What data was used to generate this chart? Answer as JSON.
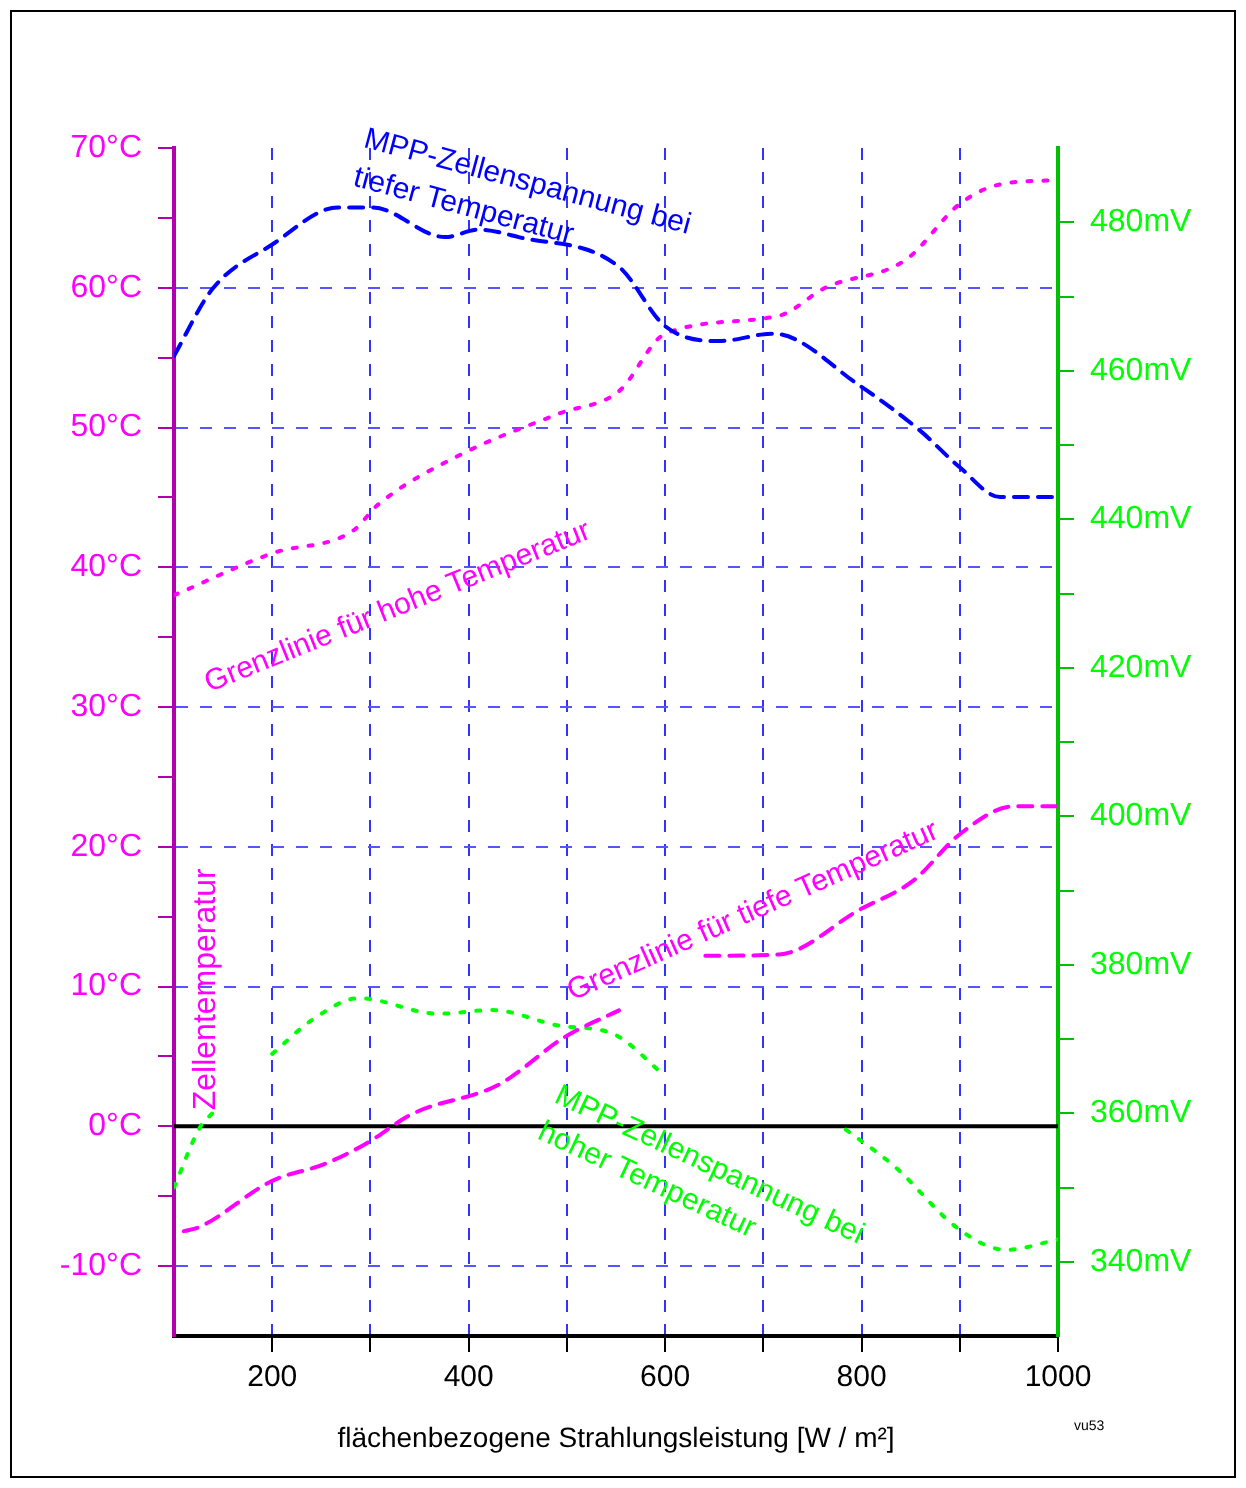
{
  "chart_data": {
    "type": "line",
    "xlabel": "flächenbezogene Strahlungsleistung [W / m²]",
    "ylabel": "Zellentemperatur",
    "xlim": [
      100,
      1000
    ],
    "xticks": [
      200,
      {
        "value": 300,
        "label": null
      },
      400,
      {
        "value": 500,
        "label": null
      },
      600,
      {
        "value": 700,
        "label": null
      },
      800,
      {
        "value": 900,
        "label": null
      },
      1000
    ],
    "ylim": [
      -15,
      70
    ],
    "yticks": [
      {
        "value": -10,
        "label": "-10°C"
      },
      {
        "value": -5,
        "label": null
      },
      {
        "value": 0,
        "label": "0°C"
      },
      {
        "value": 5,
        "label": null
      },
      {
        "value": 10,
        "label": "10°C"
      },
      {
        "value": 15,
        "label": null
      },
      {
        "value": 20,
        "label": "20°C"
      },
      {
        "value": 25,
        "label": null
      },
      {
        "value": 30,
        "label": "30°C"
      },
      {
        "value": 35,
        "label": null
      },
      {
        "value": 40,
        "label": "40°C"
      },
      {
        "value": 45,
        "label": null
      },
      {
        "value": 50,
        "label": "50°C"
      },
      {
        "value": 55,
        "label": null
      },
      {
        "value": 60,
        "label": "60°C"
      },
      {
        "value": 65,
        "label": null
      },
      {
        "value": 70,
        "label": "70°C"
      }
    ],
    "y2lim": [
      330,
      490
    ],
    "y2ticks": [
      {
        "value": 340,
        "label": "340mV"
      },
      {
        "value": 350,
        "label": null
      },
      {
        "value": 360,
        "label": "360mV"
      },
      {
        "value": 370,
        "label": null
      },
      {
        "value": 380,
        "label": "380mV"
      },
      {
        "value": 390,
        "label": null
      },
      {
        "value": 400,
        "label": "400mV"
      },
      {
        "value": 410,
        "label": null
      },
      {
        "value": 420,
        "label": "420mV"
      },
      {
        "value": 430,
        "label": null
      },
      {
        "value": 440,
        "label": "440mV"
      },
      {
        "value": 450,
        "label": null
      },
      {
        "value": 460,
        "label": "460mV"
      },
      {
        "value": 470,
        "label": null
      },
      {
        "value": 480,
        "label": "480mV"
      }
    ],
    "series": [
      {
        "name": "MPP-Zellenspannung bei tiefer Temperatur",
        "color": "#0000ff",
        "axis": "y2",
        "line_style": "dashed",
        "x": [
          100,
          139,
          200,
          267,
          302,
          376,
          410,
          451,
          553,
          600,
          655,
          710,
          798,
          859,
          900,
          941,
          982,
          1000
        ],
        "values": [
          462,
          471,
          477,
          482,
          482,
          478,
          479,
          478,
          474,
          466,
          464,
          465,
          458,
          452,
          447,
          443,
          443,
          443
        ]
      },
      {
        "name": "Grenzlinie für hohe Temperatur",
        "color": "#ff00ff",
        "line_style": "dotted",
        "x": [
          100,
          200,
          282,
          308,
          390,
          492,
          553,
          600,
          716,
          763,
          845,
          900,
          941,
          1000
        ],
        "values": [
          38,
          41,
          42.6,
          44.5,
          48,
          51,
          52.6,
          56.7,
          58,
          60,
          62,
          66,
          67.4,
          67.7
        ]
      },
      {
        "name": "Grenzlinie für tiefe Temperatur",
        "color": "#ff00ff",
        "line_style": "dashed",
        "x": [
          110,
          126,
          200,
          253,
          294,
          343,
          431,
          498,
          553,
          600,
          641,
          716,
          798,
          853,
          900,
          955,
          1000
        ],
        "values": [
          -7.5,
          -7.2,
          -3.9,
          -2.7,
          -1.3,
          0.9,
          3,
          6.4,
          8.3,
          null,
          12.2,
          12.3,
          15.5,
          17.6,
          20.9,
          22.9,
          22.9
        ]
      },
      {
        "name": "MPP-Zellenspannung bei hoher Temperatur",
        "color": "#00ff00",
        "axis": "y2",
        "line_style": "dotted",
        "x": [
          100,
          126,
          139,
          170,
          200,
          241,
          288,
          369,
          424,
          492,
          547,
          600,
          700,
          784,
          833,
          900,
          947,
          1000
        ],
        "values": [
          350,
          358,
          360,
          null,
          368,
          372.6,
          375.5,
          373.4,
          373.9,
          371.8,
          370.7,
          365,
          null,
          357.8,
          352.9,
          344.3,
          341.6,
          343
        ]
      }
    ],
    "ref_lines": [
      {
        "axis": "y",
        "value": 0,
        "color": "#000000",
        "line_style": "solid"
      }
    ],
    "annotations": [
      "vu53"
    ],
    "grid": true,
    "legend": false,
    "marker": "none"
  }
}
